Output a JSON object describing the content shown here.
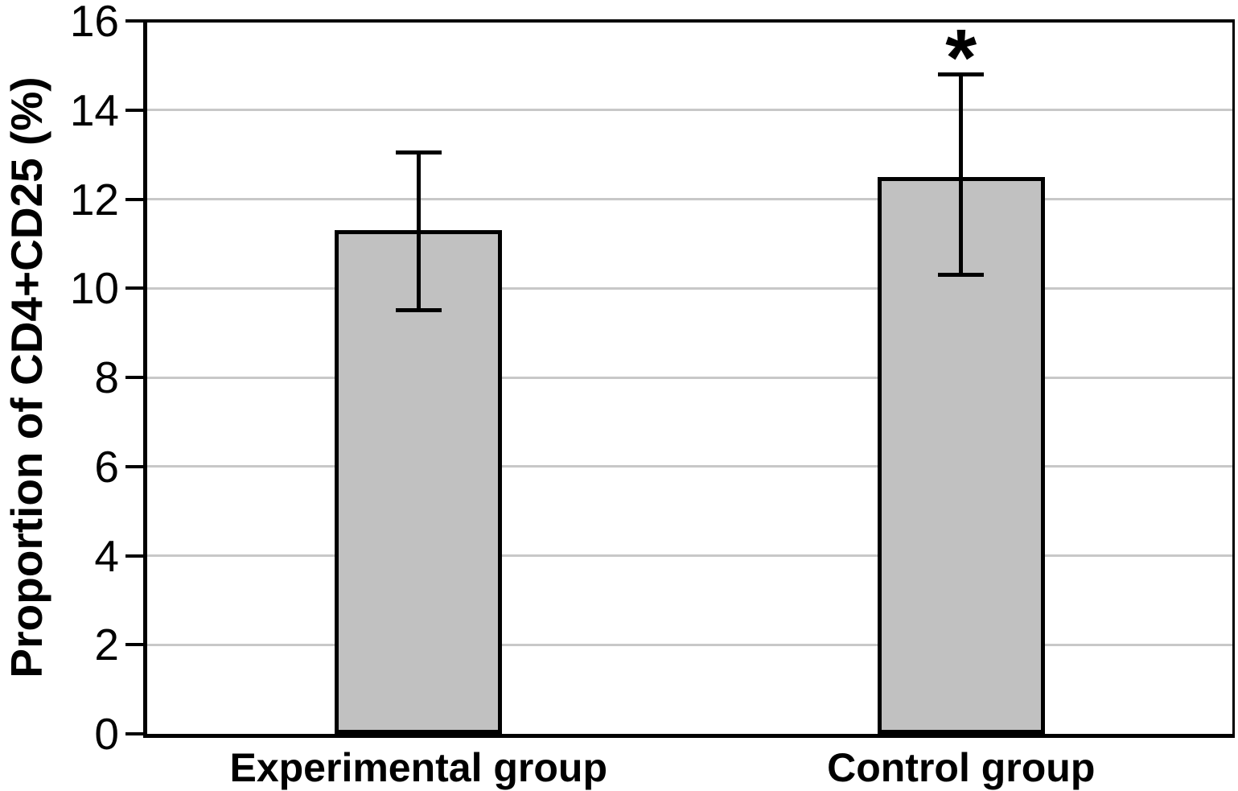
{
  "chart_data": {
    "type": "bar",
    "title": "",
    "ylabel": "Proportion of CD4+CD25 (%)",
    "xlabel": "",
    "categories": [
      "Experimental group",
      "Control group"
    ],
    "values": [
      11.3,
      12.5
    ],
    "error_low": [
      9.5,
      10.3
    ],
    "error_high": [
      13.05,
      14.8
    ],
    "annotations": [
      "",
      "*"
    ],
    "ylim": [
      0,
      16
    ],
    "yticks": [
      0,
      2,
      4,
      6,
      8,
      10,
      12,
      14,
      16
    ],
    "grid": true,
    "legend_position": "none",
    "colors": {
      "bar_fill": "#c1c1c1",
      "bar_border": "#000000",
      "gridline": "#c8c8c8",
      "axis": "#000000",
      "background": "#ffffff",
      "text": "#000000"
    }
  }
}
